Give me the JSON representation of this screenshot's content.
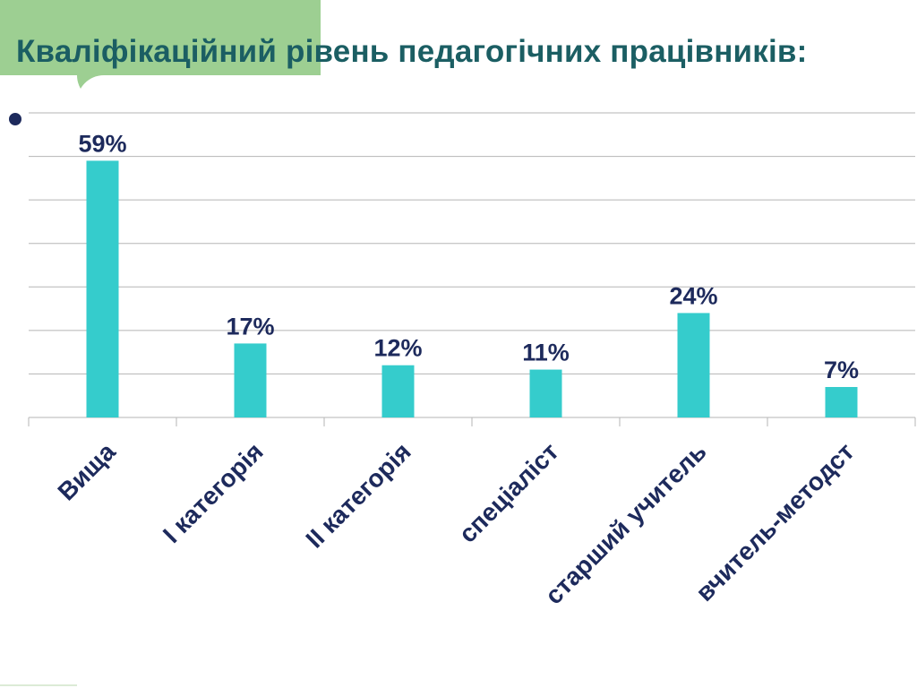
{
  "slide": {
    "title": "Кваліфікаційний рівень педагогічних працівників:"
  },
  "colors": {
    "accent_green": "#9dcf92",
    "title_color": "#1b5e63",
    "bar_color": "#35cccc",
    "label_color": "#1d2a5c",
    "grid_color": "#b5b5b5"
  },
  "chart_data": {
    "type": "bar",
    "title": "",
    "xlabel": "",
    "ylabel": "",
    "categories": [
      "Вища",
      "І категорія",
      "ІІ категорія",
      "спеціаліст",
      "старший учитель",
      "вчитель-методст"
    ],
    "values": [
      59,
      17,
      12,
      11,
      24,
      7
    ],
    "data_labels": [
      "59%",
      "17%",
      "12%",
      "11%",
      "24%",
      "7%"
    ],
    "ylim": [
      0,
      70
    ],
    "grid": true,
    "legend": "none"
  }
}
